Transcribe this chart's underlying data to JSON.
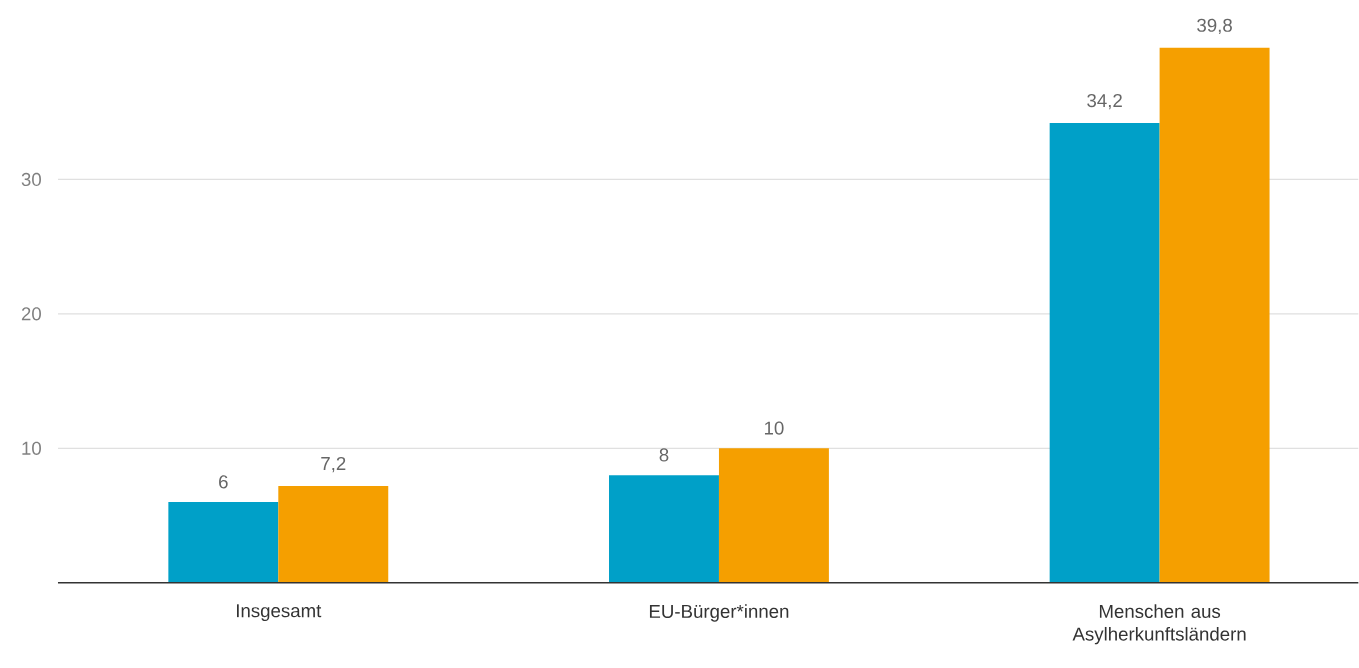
{
  "chart_data": {
    "type": "bar",
    "categories": [
      "Insgesamt",
      "EU-Bürger*innen",
      "Menschen aus Asylherkunftsländern"
    ],
    "series": [
      {
        "color": "#00a0c8",
        "values": [
          6,
          8,
          34.2
        ],
        "value_labels": [
          "6",
          "8",
          "34,2"
        ]
      },
      {
        "color": "#f59f00",
        "values": [
          7.2,
          10,
          39.8
        ],
        "value_labels": [
          "7,2",
          "10",
          "39,8"
        ]
      }
    ],
    "ylim": [
      0,
      40
    ],
    "yticks": [
      10,
      20,
      30
    ],
    "grid": "y"
  }
}
